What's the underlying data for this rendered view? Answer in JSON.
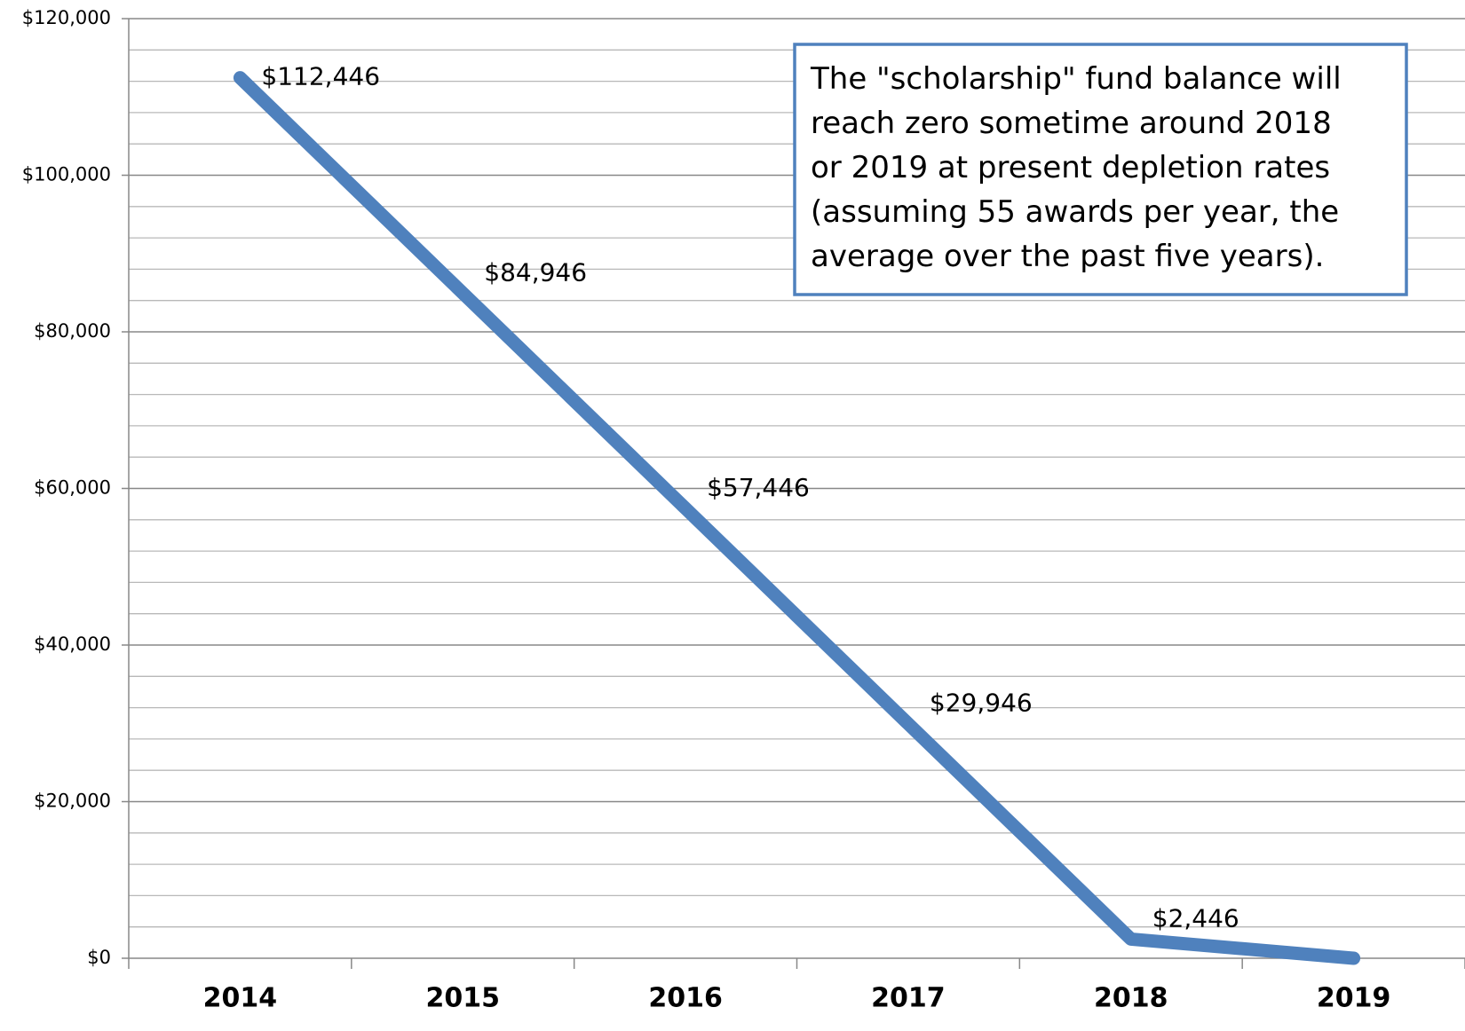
{
  "chart_data": {
    "type": "line",
    "categories": [
      "2014",
      "2015",
      "2016",
      "2017",
      "2018",
      "2019"
    ],
    "series": [
      {
        "color": "#4f81bd",
        "values": [
          112446,
          84946,
          57446,
          29946,
          2446,
          0
        ],
        "value_labels": [
          "$112,446",
          "$84,946",
          "$57,446",
          "$29,946",
          "$2,446",
          null
        ]
      }
    ],
    "ylim": [
      0,
      120000
    ],
    "yticks": [
      {
        "value": 0,
        "label": "$0"
      },
      {
        "value": 20000,
        "label": "$20,000"
      },
      {
        "value": 40000,
        "label": "$40,000"
      },
      {
        "value": 60000,
        "label": "$60,000"
      },
      {
        "value": 80000,
        "label": "$80,000"
      },
      {
        "value": 100000,
        "label": "$100,000"
      },
      {
        "value": 120000,
        "label": "$120,000"
      }
    ],
    "grid": true,
    "annotation": [
      "The \"scholarship\" fund balance will",
      "reach zero sometime around 2018",
      "or 2019 at present depletion rates",
      "(assuming 55 awards per year, the",
      "average over the past five years)."
    ]
  }
}
